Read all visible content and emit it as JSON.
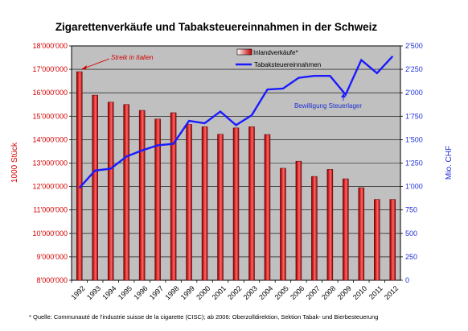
{
  "chart_data": {
    "type": "bar",
    "title": "Zigarettenverkäufe und Tabaksteuereinnahmen in der Schweiz",
    "ylabel": "1000 Stück",
    "y2label": "Mio. CHF",
    "categories": [
      "1992",
      "1993",
      "1994",
      "1995",
      "1996",
      "1997",
      "1998",
      "1999",
      "2000",
      "2001",
      "2002",
      "2003",
      "2004",
      "2005",
      "2006",
      "2007",
      "2008",
      "2009",
      "2010",
      "2011",
      "2012"
    ],
    "ylim": [
      8000000,
      18000000
    ],
    "y2lim": [
      0,
      2500
    ],
    "yticks": [
      "8'000'000",
      "9'000'000",
      "10'000'000",
      "11'000'000",
      "12'000'000",
      "13'000'000",
      "14'000'000",
      "15'000'000",
      "16'000'000",
      "17'000'000",
      "18'000'000"
    ],
    "y2ticks": [
      "0",
      "250",
      "500",
      "750",
      "1'000",
      "1'250",
      "1'500",
      "1'750",
      "2'000",
      "2'250",
      "2'500"
    ],
    "grid": true,
    "series": [
      {
        "name": "Inlandverkäufe*",
        "type": "bar",
        "axis": "left",
        "color": "#c00000",
        "values": [
          16900000,
          15900000,
          15600000,
          15500000,
          15250000,
          14880000,
          15150000,
          14650000,
          14550000,
          14230000,
          14500000,
          14550000,
          14220000,
          12780000,
          13080000,
          12430000,
          12730000,
          12330000,
          11950000,
          11450000,
          11450000
        ]
      },
      {
        "name": "Tabaksteuereinnahmen",
        "type": "line",
        "axis": "right",
        "color": "#1a1aff",
        "values": [
          985,
          1170,
          1190,
          1320,
          1385,
          1440,
          1455,
          1700,
          1675,
          1800,
          1655,
          1760,
          2035,
          2045,
          2160,
          2180,
          2180,
          1980,
          2350,
          2210,
          2390
        ]
      }
    ],
    "legend_position": "top-center",
    "annotations": [
      {
        "text": "Streik in Italien",
        "category": "1992"
      },
      {
        "text": "Bewilligung Steuerlager",
        "category": "2009"
      }
    ],
    "footnote": "* Quelle: Communauté de l'industrie suisse de la cigarette (CISC); ab 2006: Oberzolldirektion, Sektion Tabak- und Bierbesteuerung"
  }
}
